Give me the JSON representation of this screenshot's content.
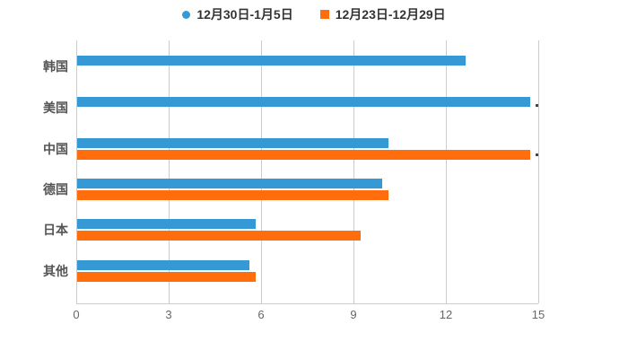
{
  "legend": {
    "items": [
      {
        "label": "12月30日-1月5日",
        "color": "#3499D4",
        "marker": "circle"
      },
      {
        "label": "12月23日-12月29日",
        "color": "#FF6D0D",
        "marker": "square"
      }
    ]
  },
  "chart_data": {
    "type": "bar",
    "orientation": "horizontal",
    "title": "",
    "xlabel": "",
    "ylabel": "",
    "categories": [
      "韩国",
      "美国",
      "中国",
      "德国",
      "日本",
      "其他"
    ],
    "series": [
      {
        "name": "12月30日-1月5日",
        "color": "#3499D4",
        "values": [
          12.6,
          14.7,
          10.1,
          9.9,
          5.8,
          5.6
        ]
      },
      {
        "name": "12月23日-12月29日",
        "color": "#FF6D0D",
        "values": [
          null,
          null,
          14.7,
          10.1,
          9.2,
          5.8
        ]
      }
    ],
    "xlim": [
      0,
      15
    ],
    "xticks": [
      0,
      3,
      6,
      9,
      12,
      15
    ],
    "grid": true,
    "legend_position": "top",
    "colors": {
      "gridline": "#cccccc",
      "axis_text": "#666666",
      "category_text": "#555555"
    }
  }
}
